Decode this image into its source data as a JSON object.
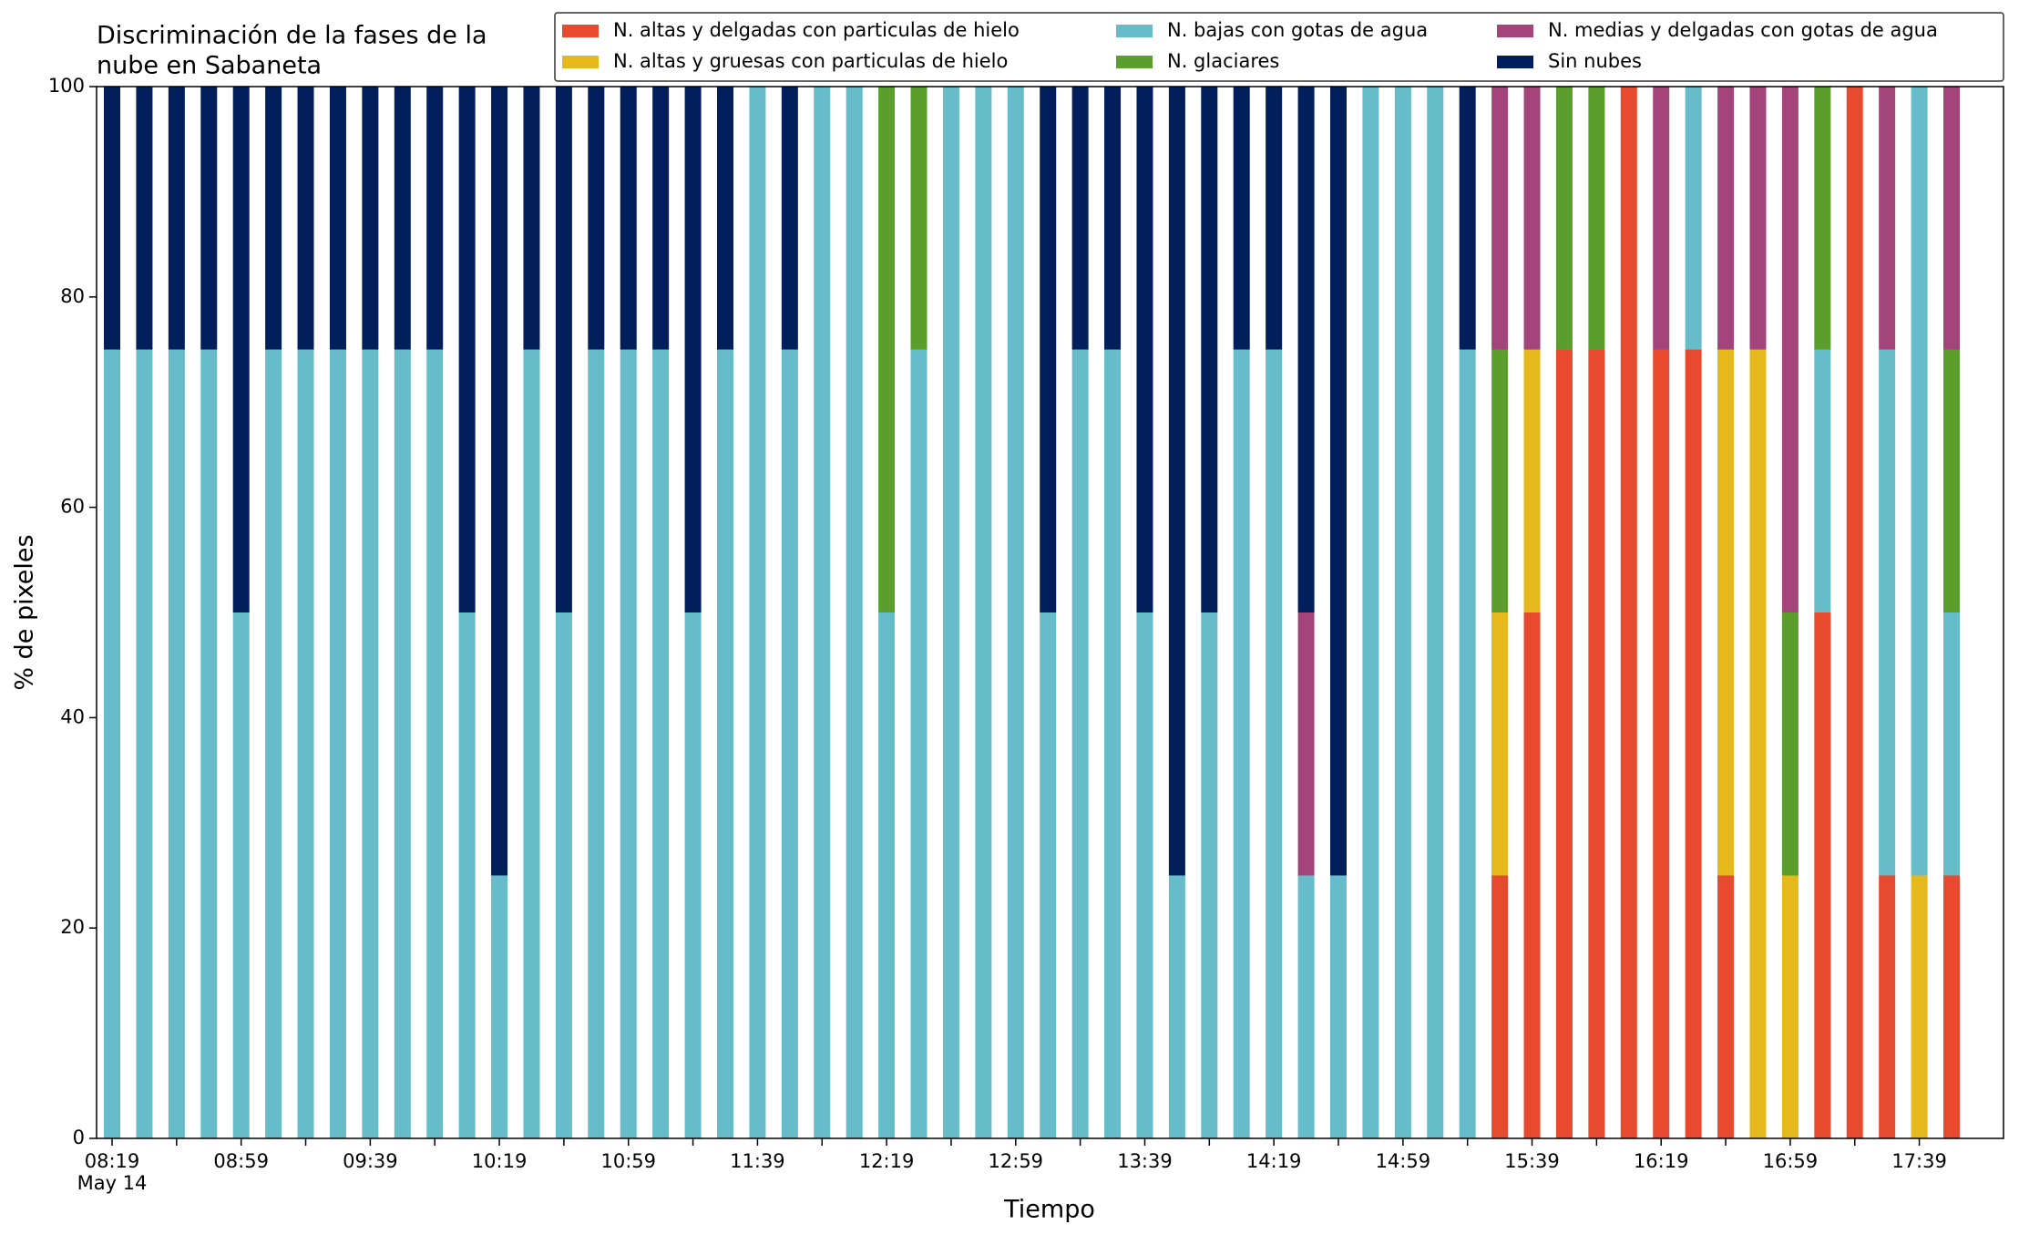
{
  "chart_data": {
    "type": "stacked_bar",
    "title": [
      "Discriminación de la fases de la",
      "nube en Sabaneta"
    ],
    "xlabel": "Tiempo",
    "ylabel": "% de pixeles",
    "date_label": "May 14",
    "categories": [
      "08:19",
      null,
      null,
      null,
      "08:59",
      null,
      null,
      null,
      "09:39",
      null,
      null,
      null,
      "10:19",
      null,
      null,
      null,
      "10:59",
      null,
      null,
      null,
      "11:39",
      null,
      null,
      null,
      "12:19",
      null,
      null,
      null,
      "12:59",
      null,
      null,
      null,
      "13:39",
      null,
      null,
      null,
      "14:19",
      null,
      null,
      null,
      "14:59",
      null,
      null,
      null,
      "15:39",
      null,
      null,
      null,
      "16:19",
      null,
      null,
      null,
      "16:59",
      null,
      null,
      null,
      "17:39",
      null
    ],
    "series": [
      {
        "name": "N. altas y delgadas con particulas de hielo",
        "color": "#e84a2f",
        "values": [
          0,
          0,
          0,
          0,
          0,
          0,
          0,
          0,
          0,
          0,
          0,
          0,
          0,
          0,
          0,
          0,
          0,
          0,
          0,
          0,
          0,
          0,
          0,
          0,
          0,
          0,
          0,
          0,
          0,
          0,
          0,
          0,
          0,
          0,
          0,
          0,
          0,
          0,
          0,
          0,
          0,
          0,
          0,
          25,
          50,
          75,
          75,
          100,
          75,
          75,
          25,
          0,
          0,
          50,
          100,
          25,
          0,
          25
        ]
      },
      {
        "name": "N. altas y gruesas con particulas de hielo",
        "color": "#e5b81b",
        "values": [
          0,
          0,
          0,
          0,
          0,
          0,
          0,
          0,
          0,
          0,
          0,
          0,
          0,
          0,
          0,
          0,
          0,
          0,
          0,
          0,
          0,
          0,
          0,
          0,
          0,
          0,
          0,
          0,
          0,
          0,
          0,
          0,
          0,
          0,
          0,
          0,
          0,
          0,
          0,
          0,
          0,
          0,
          0,
          25,
          25,
          0,
          0,
          0,
          0,
          0,
          50,
          75,
          25,
          0,
          0,
          0,
          25,
          0
        ]
      },
      {
        "name": "N. bajas con gotas de agua",
        "color": "#66bcc8",
        "values": [
          75,
          75,
          75,
          75,
          50,
          75,
          75,
          75,
          75,
          75,
          75,
          50,
          25,
          75,
          50,
          75,
          75,
          75,
          50,
          75,
          100,
          75,
          100,
          100,
          50,
          75,
          100,
          100,
          100,
          50,
          75,
          75,
          50,
          25,
          50,
          75,
          75,
          25,
          25,
          100,
          100,
          100,
          75,
          0,
          0,
          0,
          0,
          0,
          0,
          25,
          0,
          0,
          0,
          25,
          0,
          50,
          75,
          25
        ]
      },
      {
        "name": "N. glaciares",
        "color": "#5c9e2e",
        "values": [
          0,
          0,
          0,
          0,
          0,
          0,
          0,
          0,
          0,
          0,
          0,
          0,
          0,
          0,
          0,
          0,
          0,
          0,
          0,
          0,
          0,
          0,
          0,
          0,
          50,
          25,
          0,
          0,
          0,
          0,
          0,
          0,
          0,
          0,
          0,
          0,
          0,
          0,
          0,
          0,
          0,
          0,
          0,
          25,
          0,
          25,
          25,
          0,
          0,
          0,
          0,
          0,
          25,
          25,
          0,
          0,
          0,
          25
        ]
      },
      {
        "name": "N. medias y delgadas con gotas de agua",
        "color": "#a3457a",
        "values": [
          0,
          0,
          0,
          0,
          0,
          0,
          0,
          0,
          0,
          0,
          0,
          0,
          0,
          0,
          0,
          0,
          0,
          0,
          0,
          0,
          0,
          0,
          0,
          0,
          0,
          0,
          0,
          0,
          0,
          0,
          0,
          0,
          0,
          0,
          0,
          0,
          0,
          25,
          0,
          0,
          0,
          0,
          0,
          25,
          25,
          0,
          0,
          0,
          25,
          0,
          25,
          25,
          50,
          0,
          0,
          25,
          0,
          25
        ]
      },
      {
        "name": "Sin nubes",
        "color": "#021f5c",
        "values": [
          25,
          25,
          25,
          25,
          50,
          25,
          25,
          25,
          25,
          25,
          25,
          50,
          75,
          25,
          50,
          25,
          25,
          25,
          50,
          25,
          0,
          25,
          0,
          0,
          0,
          0,
          0,
          0,
          0,
          50,
          25,
          25,
          50,
          75,
          50,
          25,
          25,
          50,
          75,
          0,
          0,
          0,
          25,
          0,
          0,
          0,
          0,
          0,
          0,
          0,
          0,
          0,
          0,
          0,
          0,
          0,
          0,
          0
        ]
      }
    ],
    "ylim": [
      0,
      100
    ],
    "yticks": [
      0,
      20,
      40,
      60,
      80,
      100
    ],
    "grid": false,
    "legend": "top right"
  }
}
